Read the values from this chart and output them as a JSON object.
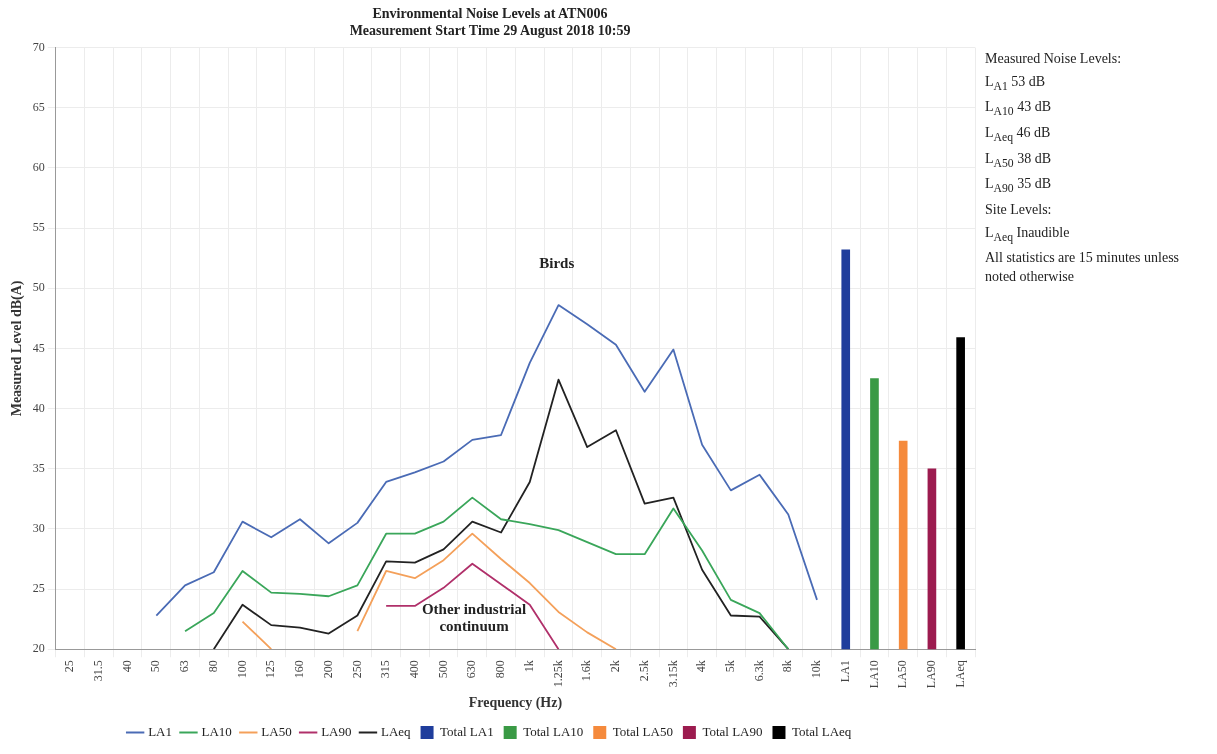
{
  "chart_data": {
    "type": "line",
    "title": "Environmental Noise Levels at ATN006",
    "subtitle": "Measurement Start Time 29 August 2018 10:59",
    "xlabel": "Frequency (Hz)",
    "ylabel": "Measured Level dB(A)",
    "categories": [
      "25",
      "31.5",
      "40",
      "50",
      "63",
      "80",
      "100",
      "125",
      "160",
      "200",
      "250",
      "315",
      "400",
      "500",
      "630",
      "800",
      "1k",
      "1.25k",
      "1.6k",
      "2k",
      "2.5k",
      "3.15k",
      "4k",
      "5k",
      "6.3k",
      "8k",
      "10k",
      "LA1",
      "LA10",
      "LA50",
      "LA90",
      "LAeq"
    ],
    "ylim": [
      20,
      70
    ],
    "yticks": [
      20,
      25,
      30,
      35,
      40,
      45,
      50,
      55,
      60,
      65,
      70
    ],
    "grid": true,
    "legend": "bottom",
    "marker": "none",
    "series": [
      {
        "name": "LA1",
        "color": "#4a6bb5",
        "values": [
          null,
          null,
          null,
          22.8,
          25.3,
          26.4,
          30.6,
          29.3,
          30.8,
          28.8,
          30.5,
          33.9,
          34.7,
          35.6,
          37.4,
          37.8,
          43.8,
          48.6,
          47.0,
          45.3,
          41.4,
          44.9,
          37.0,
          33.2,
          34.5,
          31.2,
          24.1,
          null,
          null,
          null,
          null,
          null
        ]
      },
      {
        "name": "LA10",
        "color": "#3aa65a",
        "values": [
          null,
          null,
          null,
          null,
          21.5,
          23.0,
          26.5,
          24.7,
          24.6,
          24.4,
          25.3,
          29.6,
          29.6,
          30.6,
          32.6,
          30.8,
          30.4,
          29.9,
          28.9,
          27.9,
          27.9,
          31.7,
          28.2,
          24.1,
          23.0,
          20.0,
          null,
          null,
          null,
          null,
          null,
          null
        ]
      },
      {
        "name": "LA50",
        "color": "#f4a05a",
        "values": [
          null,
          null,
          null,
          null,
          null,
          null,
          22.3,
          20.0,
          null,
          null,
          21.5,
          26.5,
          25.9,
          27.4,
          29.6,
          27.5,
          25.5,
          23.1,
          21.4,
          20.0,
          null,
          null,
          null,
          null,
          null,
          null,
          null,
          null,
          null,
          null,
          null,
          null
        ]
      },
      {
        "name": "LA90",
        "color": "#b0306a",
        "values": [
          null,
          null,
          null,
          null,
          null,
          null,
          null,
          null,
          null,
          null,
          null,
          23.6,
          23.6,
          25.1,
          27.1,
          25.4,
          23.7,
          20.0,
          null,
          null,
          null,
          null,
          null,
          null,
          null,
          null,
          null,
          null,
          null,
          null,
          null,
          null
        ]
      },
      {
        "name": "LAeq",
        "color": "#222222",
        "values": [
          null,
          null,
          null,
          null,
          null,
          20.0,
          23.7,
          22.0,
          21.8,
          21.3,
          22.8,
          27.3,
          27.2,
          28.3,
          30.6,
          29.7,
          33.9,
          42.4,
          36.8,
          38.2,
          32.1,
          32.6,
          26.6,
          22.8,
          22.7,
          20.0,
          null,
          null,
          null,
          null,
          null,
          null
        ]
      },
      {
        "name": "Total LA1",
        "type": "bar",
        "color": "#1f3d9c",
        "values": [
          null,
          null,
          null,
          null,
          null,
          null,
          null,
          null,
          null,
          null,
          null,
          null,
          null,
          null,
          null,
          null,
          null,
          null,
          null,
          null,
          null,
          null,
          null,
          null,
          null,
          null,
          null,
          53.2,
          null,
          null,
          null,
          null
        ]
      },
      {
        "name": "Total LA10",
        "type": "bar",
        "color": "#3a9a45",
        "values": [
          null,
          null,
          null,
          null,
          null,
          null,
          null,
          null,
          null,
          null,
          null,
          null,
          null,
          null,
          null,
          null,
          null,
          null,
          null,
          null,
          null,
          null,
          null,
          null,
          null,
          null,
          null,
          null,
          42.5,
          null,
          null,
          null
        ]
      },
      {
        "name": "Total LA50",
        "type": "bar",
        "color": "#f58a3c",
        "values": [
          null,
          null,
          null,
          null,
          null,
          null,
          null,
          null,
          null,
          null,
          null,
          null,
          null,
          null,
          null,
          null,
          null,
          null,
          null,
          null,
          null,
          null,
          null,
          null,
          null,
          null,
          null,
          null,
          null,
          37.3,
          null,
          null
        ]
      },
      {
        "name": "Total LA90",
        "type": "bar",
        "color": "#9c1b4f",
        "values": [
          null,
          null,
          null,
          null,
          null,
          null,
          null,
          null,
          null,
          null,
          null,
          null,
          null,
          null,
          null,
          null,
          null,
          null,
          null,
          null,
          null,
          null,
          null,
          null,
          null,
          null,
          null,
          null,
          null,
          null,
          35.0,
          null
        ]
      },
      {
        "name": "Total LAeq",
        "type": "bar",
        "color": "#000000",
        "values": [
          null,
          null,
          null,
          null,
          null,
          null,
          null,
          null,
          null,
          null,
          null,
          null,
          null,
          null,
          null,
          null,
          null,
          null,
          null,
          null,
          null,
          null,
          null,
          null,
          null,
          null,
          null,
          null,
          null,
          null,
          null,
          45.9
        ]
      }
    ],
    "annotations": [
      "Birds",
      "Other industrial continuum",
      "Measured Noise Levels:",
      "L$_{A1}$ 53 dB",
      "L$_{A10}$ 43 dB",
      "L$_{Aeq}$ 46 dB",
      "L$_{A50}$ 38 dB",
      "L$_{A90}$ 35 dB",
      "Site Levels:",
      "L$_{Aeq}$ Inaudible",
      "All statistics are 15 minutes unless noted otherwise"
    ]
  }
}
